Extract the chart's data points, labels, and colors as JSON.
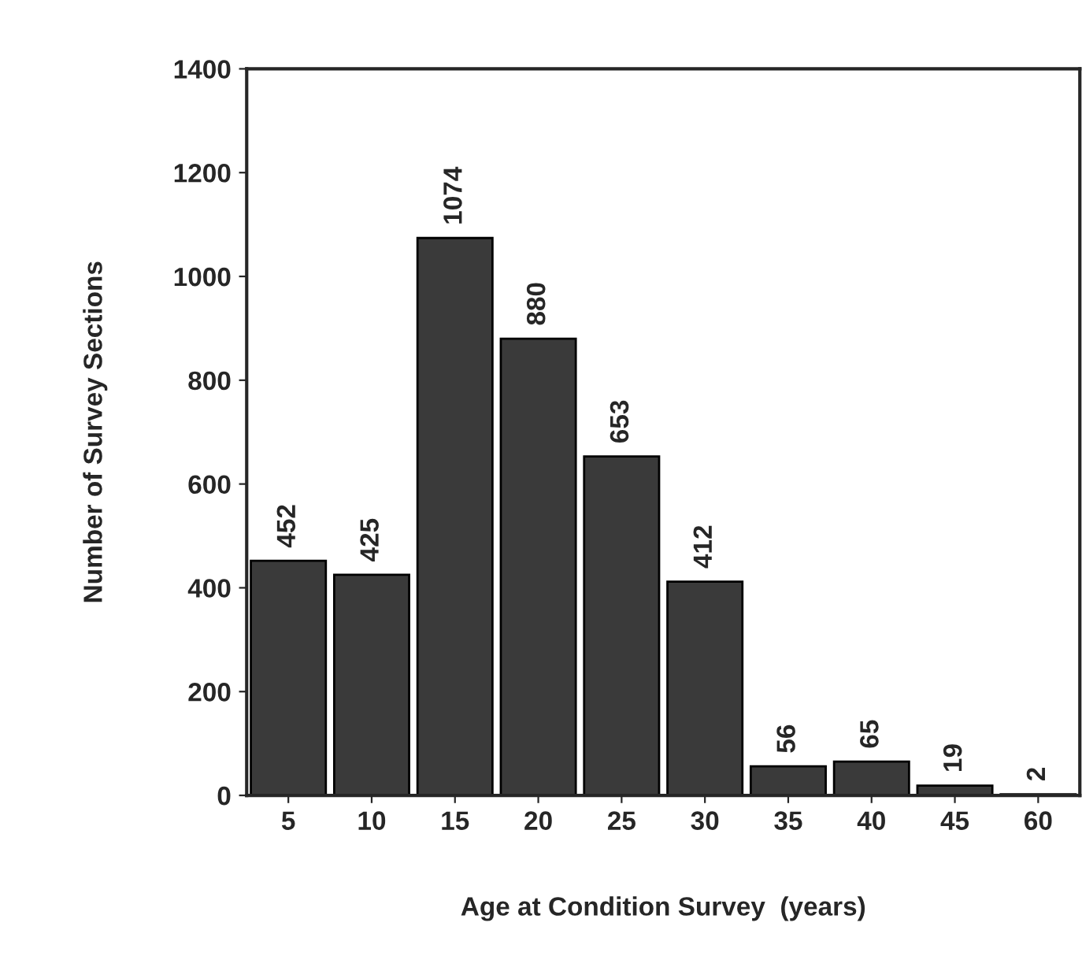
{
  "chart_data": {
    "type": "bar",
    "xlabel": "Age at Condition Survey  (years)",
    "ylabel": "Number of Survey Sections",
    "categories": [
      "5",
      "10",
      "15",
      "20",
      "25",
      "30",
      "35",
      "40",
      "45",
      "60"
    ],
    "values": [
      452,
      425,
      1074,
      880,
      653,
      412,
      56,
      65,
      19,
      2
    ],
    "color": "#3a3a3a",
    "ylim": [
      0,
      1400
    ],
    "yticks": [
      0,
      200,
      400,
      600,
      800,
      1000,
      1200,
      1400
    ],
    "data_labels": true,
    "grid": false,
    "legend": false
  }
}
